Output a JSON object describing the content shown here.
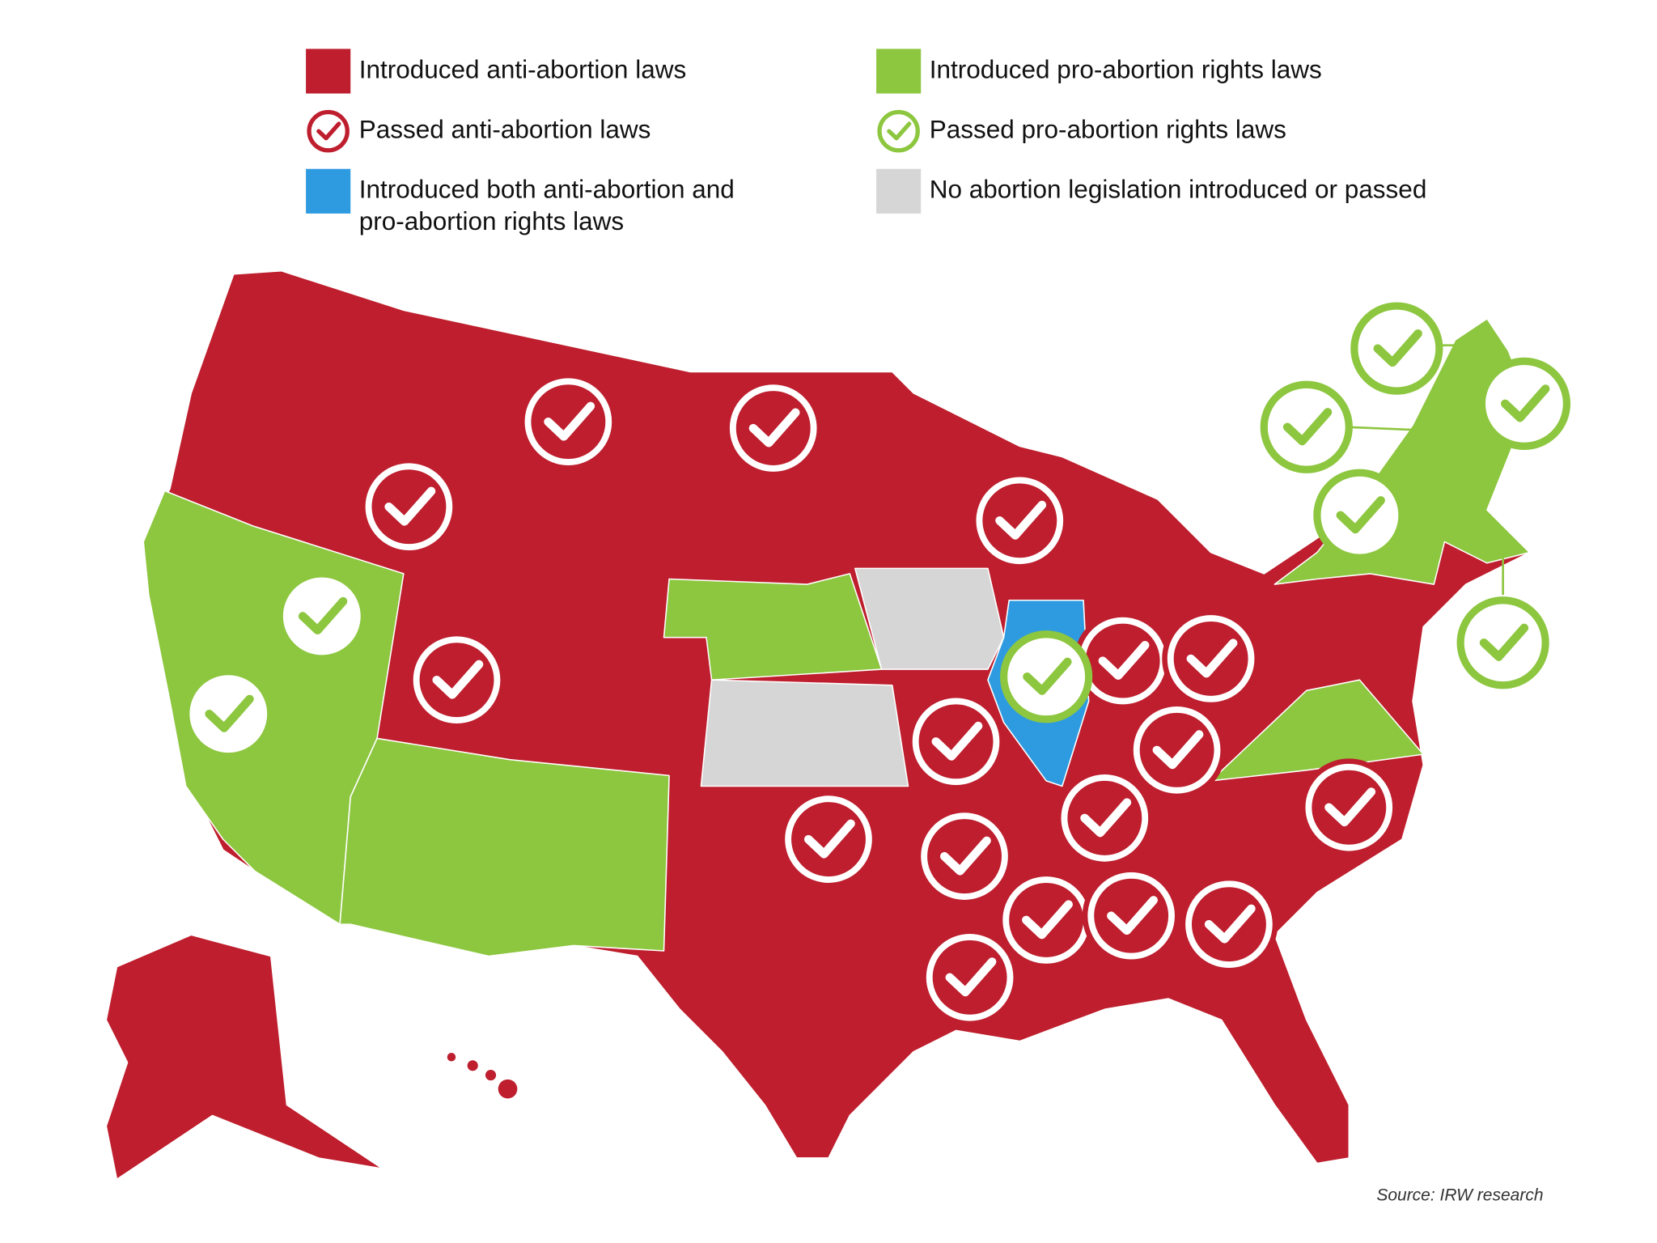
{
  "legend": {
    "items": [
      {
        "lines": [
          "Introduced anti-abortion laws"
        ],
        "marker": "square",
        "color": "#be1e2d"
      },
      {
        "lines": [
          "Introduced pro-abortion rights laws"
        ],
        "marker": "square",
        "color": "#8dc63f"
      },
      {
        "lines": [
          "Passed anti-abortion laws"
        ],
        "marker": "check",
        "color": "#be1e2d"
      },
      {
        "lines": [
          "Passed pro-abortion rights laws"
        ],
        "marker": "check",
        "color": "#8dc63f"
      },
      {
        "lines": [
          "Introduced both anti-abortion and",
          "pro-abortion rights laws"
        ],
        "marker": "square",
        "color": "#2e9be0"
      },
      {
        "lines": [
          "No abortion legislation introduced or passed"
        ],
        "marker": "square",
        "color": "#d6d6d6"
      }
    ]
  },
  "source": "Source: IRW research"
}
